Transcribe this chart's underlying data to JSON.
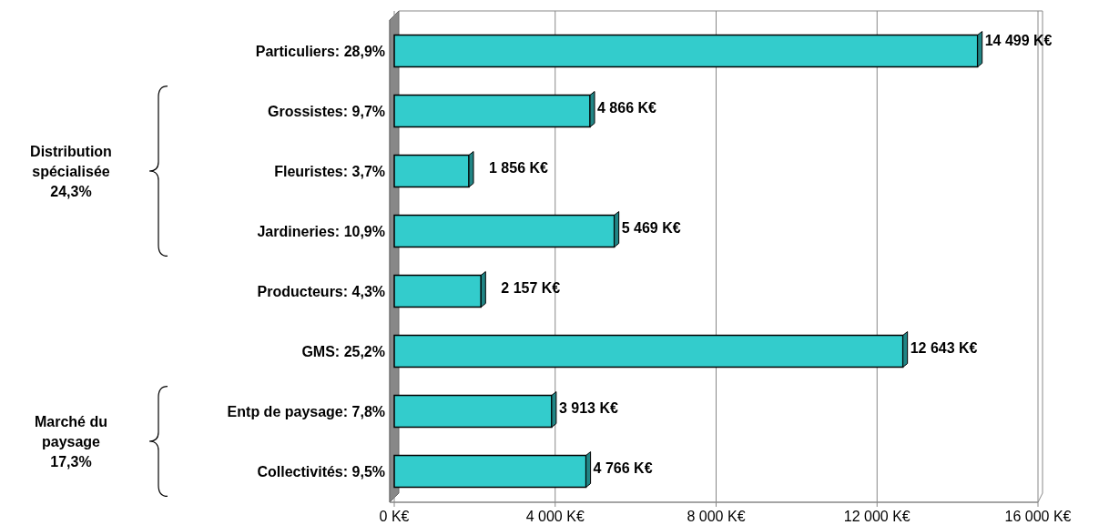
{
  "chart_data": {
    "type": "bar",
    "orientation": "horizontal",
    "categories": [
      "Particuliers: 28,9%",
      "Grossistes: 9,7%",
      "Fleuristes: 3,7%",
      "Jardineries: 10,9%",
      "Producteurs: 4,3%",
      "GMS: 25,2%",
      "Entp de paysage: 7,8%",
      "Collectivités: 9,5%"
    ],
    "values": [
      14499,
      4866,
      1856,
      5469,
      2157,
      12643,
      3913,
      4766
    ],
    "value_labels": [
      "14 499 K€",
      "4 866 K€",
      "1 856 K€",
      "5 469 K€",
      "2 157 K€",
      "12 643 K€",
      "3 913 K€",
      "4 766 K€"
    ],
    "color": "#33cccc",
    "xlim": [
      0,
      16000
    ],
    "xticks": [
      {
        "value": 0,
        "label": "0 K€"
      },
      {
        "value": 4000,
        "label": "4 000 K€"
      },
      {
        "value": 8000,
        "label": "8 000 K€"
      },
      {
        "value": 12000,
        "label": "12 000 K€"
      },
      {
        "value": 16000,
        "label": "16 000 K€"
      }
    ],
    "grid": "x",
    "annotations": [
      "Distribution\nspécialisée\n24,3%",
      "Marché du\npaysage\n17,3%"
    ]
  }
}
